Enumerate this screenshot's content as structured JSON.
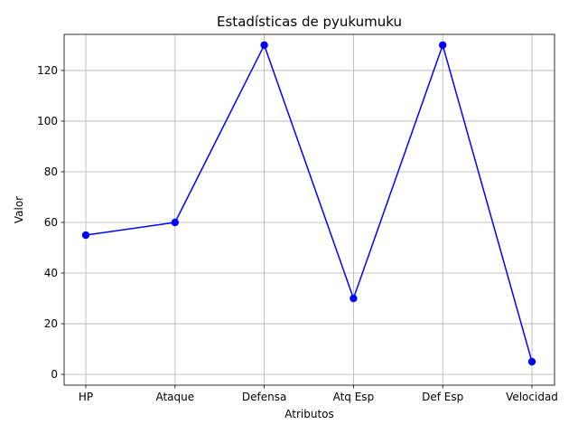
{
  "chart_data": {
    "type": "line",
    "title": "Estadísticas de pyukumuku",
    "xlabel": "Atributos",
    "ylabel": "Valor",
    "categories": [
      "HP",
      "Ataque",
      "Defensa",
      "Atq Esp",
      "Def Esp",
      "Velocidad"
    ],
    "series": [
      {
        "values": [
          55,
          60,
          130,
          30,
          130,
          5
        ],
        "color": "#0000ff",
        "marker": "circle"
      }
    ],
    "ylim": [
      -4.25,
      134.25
    ],
    "yticks": [
      0,
      20,
      40,
      60,
      80,
      100,
      120
    ],
    "grid": true,
    "legend": "none"
  }
}
